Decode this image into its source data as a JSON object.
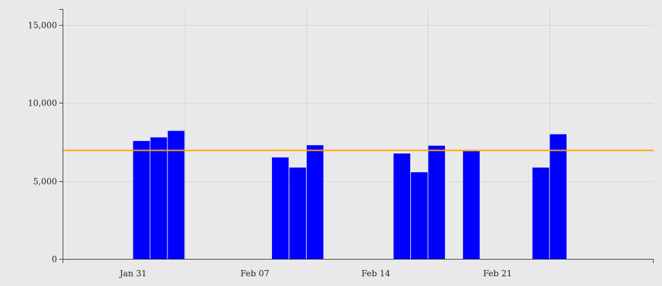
{
  "chart_data": {
    "type": "bar",
    "title": "",
    "xlabel": "",
    "ylabel": "",
    "ylim": [
      0,
      16000
    ],
    "yticks": [
      0,
      5000,
      10000,
      15000
    ],
    "ytick_labels": [
      "0",
      "5,000",
      "10,000",
      "15,000"
    ],
    "xtick_labels": [
      "Jan 31",
      "Feb 07",
      "Feb 14",
      "Feb 21"
    ],
    "xtick_dates": [
      "2021-01-31",
      "2021-02-07",
      "2021-02-14",
      "2021-02-21"
    ],
    "xlim": [
      "2021-01-27",
      "2021-03-02"
    ],
    "grid": true,
    "series": [
      {
        "color": "#0000ff",
        "x": [
          "2021-01-31",
          "2021-02-01",
          "2021-02-02",
          "2021-02-08",
          "2021-02-09",
          "2021-02-10",
          "2021-02-15",
          "2021-02-16",
          "2021-02-17",
          "2021-02-19",
          "2021-02-23",
          "2021-02-24"
        ],
        "values": [
          7550,
          7780,
          8200,
          6500,
          5850,
          7280,
          6750,
          5550,
          7250,
          6900,
          5850,
          7980
        ]
      }
    ],
    "reference_line": {
      "y": 6950,
      "color": "#ffa500"
    }
  }
}
